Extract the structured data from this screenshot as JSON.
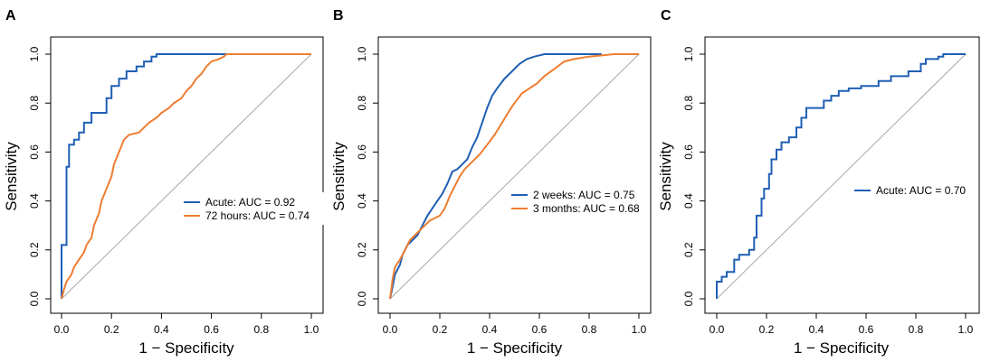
{
  "chart_data": [
    {
      "type": "line",
      "panel": "A",
      "xlabel": "1 − Specificity",
      "ylabel": "Sensitivity",
      "xlim": [
        0,
        1
      ],
      "ylim": [
        0,
        1
      ],
      "x_ticks": [
        "0.0",
        "0.2",
        "0.4",
        "0.6",
        "0.8",
        "1.0"
      ],
      "y_ticks": [
        "0.0",
        "0.2",
        "0.4",
        "0.6",
        "0.8",
        "1.0"
      ],
      "reference_line": true,
      "legend_position": "lower-right",
      "series": [
        {
          "name": "Acute: AUC = 0.92",
          "color": "#1f5fb4",
          "points": [
            [
              0,
              0
            ],
            [
              0,
              0.22
            ],
            [
              0.02,
              0.22
            ],
            [
              0.02,
              0.54
            ],
            [
              0.03,
              0.54
            ],
            [
              0.03,
              0.63
            ],
            [
              0.05,
              0.63
            ],
            [
              0.05,
              0.65
            ],
            [
              0.07,
              0.65
            ],
            [
              0.07,
              0.68
            ],
            [
              0.09,
              0.68
            ],
            [
              0.09,
              0.72
            ],
            [
              0.12,
              0.72
            ],
            [
              0.12,
              0.76
            ],
            [
              0.18,
              0.76
            ],
            [
              0.18,
              0.82
            ],
            [
              0.2,
              0.82
            ],
            [
              0.2,
              0.87
            ],
            [
              0.23,
              0.87
            ],
            [
              0.23,
              0.9
            ],
            [
              0.26,
              0.9
            ],
            [
              0.26,
              0.93
            ],
            [
              0.3,
              0.93
            ],
            [
              0.3,
              0.95
            ],
            [
              0.33,
              0.95
            ],
            [
              0.33,
              0.97
            ],
            [
              0.36,
              0.97
            ],
            [
              0.36,
              0.99
            ],
            [
              0.38,
              0.99
            ],
            [
              0.38,
              1.0
            ],
            [
              0.66,
              1.0
            ]
          ]
        },
        {
          "name": "72 hours: AUC = 0.74",
          "color": "#ee7d31",
          "points": [
            [
              0,
              0
            ],
            [
              0.01,
              0.04
            ],
            [
              0.02,
              0.07
            ],
            [
              0.04,
              0.1
            ],
            [
              0.05,
              0.13
            ],
            [
              0.07,
              0.16
            ],
            [
              0.09,
              0.19
            ],
            [
              0.1,
              0.22
            ],
            [
              0.12,
              0.25
            ],
            [
              0.13,
              0.3
            ],
            [
              0.15,
              0.35
            ],
            [
              0.16,
              0.4
            ],
            [
              0.18,
              0.45
            ],
            [
              0.2,
              0.5
            ],
            [
              0.21,
              0.55
            ],
            [
              0.23,
              0.6
            ],
            [
              0.25,
              0.65
            ],
            [
              0.27,
              0.67
            ],
            [
              0.31,
              0.68
            ],
            [
              0.33,
              0.7
            ],
            [
              0.35,
              0.72
            ],
            [
              0.38,
              0.74
            ],
            [
              0.4,
              0.76
            ],
            [
              0.43,
              0.78
            ],
            [
              0.45,
              0.8
            ],
            [
              0.48,
              0.82
            ],
            [
              0.5,
              0.85
            ],
            [
              0.52,
              0.87
            ],
            [
              0.54,
              0.9
            ],
            [
              0.56,
              0.92
            ],
            [
              0.58,
              0.95
            ],
            [
              0.6,
              0.97
            ],
            [
              0.63,
              0.98
            ],
            [
              0.65,
              0.99
            ],
            [
              0.66,
              1.0
            ],
            [
              1.0,
              1.0
            ]
          ]
        }
      ]
    },
    {
      "type": "line",
      "panel": "B",
      "xlabel": "1 − Specificity",
      "ylabel": "Sensitivity",
      "xlim": [
        0,
        1
      ],
      "ylim": [
        0,
        1
      ],
      "x_ticks": [
        "0.0",
        "0.2",
        "0.4",
        "0.6",
        "0.8",
        "1.0"
      ],
      "y_ticks": [
        "0.0",
        "0.2",
        "0.4",
        "0.6",
        "0.8",
        "1.0"
      ],
      "reference_line": true,
      "legend_position": "lower-right",
      "series": [
        {
          "name": "2 weeks: AUC = 0.75",
          "color": "#1f5fb4",
          "points": [
            [
              0,
              0
            ],
            [
              0.01,
              0.05
            ],
            [
              0.02,
              0.1
            ],
            [
              0.04,
              0.14
            ],
            [
              0.05,
              0.18
            ],
            [
              0.07,
              0.22
            ],
            [
              0.09,
              0.24
            ],
            [
              0.11,
              0.26
            ],
            [
              0.13,
              0.3
            ],
            [
              0.15,
              0.34
            ],
            [
              0.17,
              0.37
            ],
            [
              0.19,
              0.4
            ],
            [
              0.21,
              0.43
            ],
            [
              0.23,
              0.47
            ],
            [
              0.25,
              0.52
            ],
            [
              0.27,
              0.53
            ],
            [
              0.29,
              0.55
            ],
            [
              0.31,
              0.57
            ],
            [
              0.33,
              0.62
            ],
            [
              0.35,
              0.66
            ],
            [
              0.37,
              0.72
            ],
            [
              0.39,
              0.78
            ],
            [
              0.41,
              0.83
            ],
            [
              0.43,
              0.86
            ],
            [
              0.46,
              0.9
            ],
            [
              0.49,
              0.93
            ],
            [
              0.52,
              0.96
            ],
            [
              0.55,
              0.98
            ],
            [
              0.58,
              0.99
            ],
            [
              0.62,
              1.0
            ],
            [
              0.85,
              1.0
            ]
          ]
        },
        {
          "name": "3 months: AUC = 0.68",
          "color": "#ee7d31",
          "points": [
            [
              0,
              0
            ],
            [
              0.01,
              0.08
            ],
            [
              0.02,
              0.13
            ],
            [
              0.04,
              0.16
            ],
            [
              0.06,
              0.2
            ],
            [
              0.08,
              0.24
            ],
            [
              0.1,
              0.26
            ],
            [
              0.12,
              0.28
            ],
            [
              0.14,
              0.3
            ],
            [
              0.16,
              0.32
            ],
            [
              0.18,
              0.33
            ],
            [
              0.2,
              0.34
            ],
            [
              0.22,
              0.37
            ],
            [
              0.24,
              0.42
            ],
            [
              0.26,
              0.46
            ],
            [
              0.28,
              0.5
            ],
            [
              0.3,
              0.53
            ],
            [
              0.33,
              0.56
            ],
            [
              0.36,
              0.59
            ],
            [
              0.39,
              0.63
            ],
            [
              0.42,
              0.67
            ],
            [
              0.45,
              0.72
            ],
            [
              0.48,
              0.77
            ],
            [
              0.5,
              0.8
            ],
            [
              0.53,
              0.84
            ],
            [
              0.56,
              0.86
            ],
            [
              0.59,
              0.88
            ],
            [
              0.62,
              0.91
            ],
            [
              0.66,
              0.94
            ],
            [
              0.7,
              0.97
            ],
            [
              0.74,
              0.98
            ],
            [
              0.8,
              0.99
            ],
            [
              0.9,
              1.0
            ],
            [
              1.0,
              1.0
            ]
          ]
        }
      ]
    },
    {
      "type": "line",
      "panel": "C",
      "xlabel": "1 − Specificity",
      "ylabel": "Sensitivity",
      "xlim": [
        0,
        1
      ],
      "ylim": [
        0,
        1
      ],
      "x_ticks": [
        "0.0",
        "0.2",
        "0.4",
        "0.6",
        "0.8",
        "1.0"
      ],
      "y_ticks": [
        "0.0",
        "0.2",
        "0.4",
        "0.6",
        "0.8",
        "1.0"
      ],
      "reference_line": true,
      "legend_position": "right",
      "series": [
        {
          "name": "Acute: AUC = 0.70",
          "color": "#1f5fb4",
          "points": [
            [
              0,
              0
            ],
            [
              0,
              0.07
            ],
            [
              0.02,
              0.07
            ],
            [
              0.02,
              0.09
            ],
            [
              0.04,
              0.09
            ],
            [
              0.04,
              0.11
            ],
            [
              0.07,
              0.11
            ],
            [
              0.07,
              0.16
            ],
            [
              0.09,
              0.16
            ],
            [
              0.09,
              0.18
            ],
            [
              0.13,
              0.18
            ],
            [
              0.13,
              0.2
            ],
            [
              0.15,
              0.2
            ],
            [
              0.15,
              0.25
            ],
            [
              0.16,
              0.25
            ],
            [
              0.16,
              0.34
            ],
            [
              0.18,
              0.34
            ],
            [
              0.18,
              0.41
            ],
            [
              0.19,
              0.41
            ],
            [
              0.19,
              0.45
            ],
            [
              0.21,
              0.45
            ],
            [
              0.21,
              0.51
            ],
            [
              0.22,
              0.51
            ],
            [
              0.22,
              0.57
            ],
            [
              0.24,
              0.57
            ],
            [
              0.24,
              0.61
            ],
            [
              0.26,
              0.61
            ],
            [
              0.26,
              0.64
            ],
            [
              0.29,
              0.64
            ],
            [
              0.29,
              0.66
            ],
            [
              0.32,
              0.66
            ],
            [
              0.32,
              0.7
            ],
            [
              0.34,
              0.7
            ],
            [
              0.34,
              0.74
            ],
            [
              0.36,
              0.74
            ],
            [
              0.36,
              0.78
            ],
            [
              0.43,
              0.78
            ],
            [
              0.43,
              0.81
            ],
            [
              0.46,
              0.81
            ],
            [
              0.46,
              0.83
            ],
            [
              0.49,
              0.83
            ],
            [
              0.49,
              0.85
            ],
            [
              0.53,
              0.85
            ],
            [
              0.53,
              0.86
            ],
            [
              0.58,
              0.86
            ],
            [
              0.58,
              0.87
            ],
            [
              0.65,
              0.87
            ],
            [
              0.65,
              0.89
            ],
            [
              0.7,
              0.89
            ],
            [
              0.7,
              0.91
            ],
            [
              0.77,
              0.91
            ],
            [
              0.77,
              0.93
            ],
            [
              0.82,
              0.93
            ],
            [
              0.82,
              0.96
            ],
            [
              0.84,
              0.96
            ],
            [
              0.84,
              0.98
            ],
            [
              0.89,
              0.98
            ],
            [
              0.89,
              0.99
            ],
            [
              0.91,
              0.99
            ],
            [
              0.91,
              1.0
            ],
            [
              1.0,
              1.0
            ]
          ]
        }
      ]
    }
  ]
}
